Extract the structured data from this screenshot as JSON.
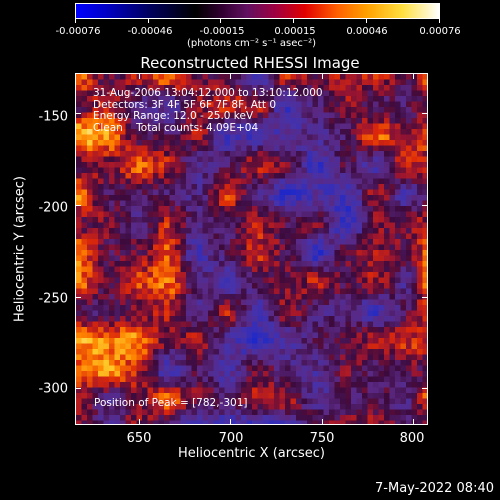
{
  "colorbar": {
    "tick_labels": [
      "-0.00076",
      "-0.00046",
      "-0.00015",
      "0.00015",
      "0.00046",
      "0.00076"
    ],
    "units": "(photons cm⁻² s⁻¹ asec⁻²)"
  },
  "plot": {
    "title": "Reconstructed RHESSI Image",
    "xlabel": "Heliocentric X (arcsec)",
    "ylabel": "Heliocentric Y (arcsec)",
    "x_ticks": [
      "650",
      "700",
      "750",
      "800"
    ],
    "y_ticks": [
      "-150",
      "-200",
      "-250",
      "-300"
    ],
    "x_tick_values": [
      650,
      700,
      750,
      800
    ],
    "y_tick_values": [
      -150,
      -200,
      -250,
      -300
    ],
    "xlim": [
      615,
      808
    ],
    "ylim": [
      -320,
      -128
    ]
  },
  "annotations": {
    "line1": "31-Aug-2006 13:04:12.000 to 13:10:12.000",
    "line2": "Detectors: 3F 4F 5F 6F 7F 8F, Att 0",
    "line3": "Energy Range: 12.0 - 25.0 keV",
    "line4": "Clean    Total counts: 4.09E+04",
    "peak": "Position of Peak = [782,-301]"
  },
  "datestamp": "7-May-2022 08:40",
  "colors": {
    "background": "#000000",
    "foreground": "#ffffff"
  }
}
